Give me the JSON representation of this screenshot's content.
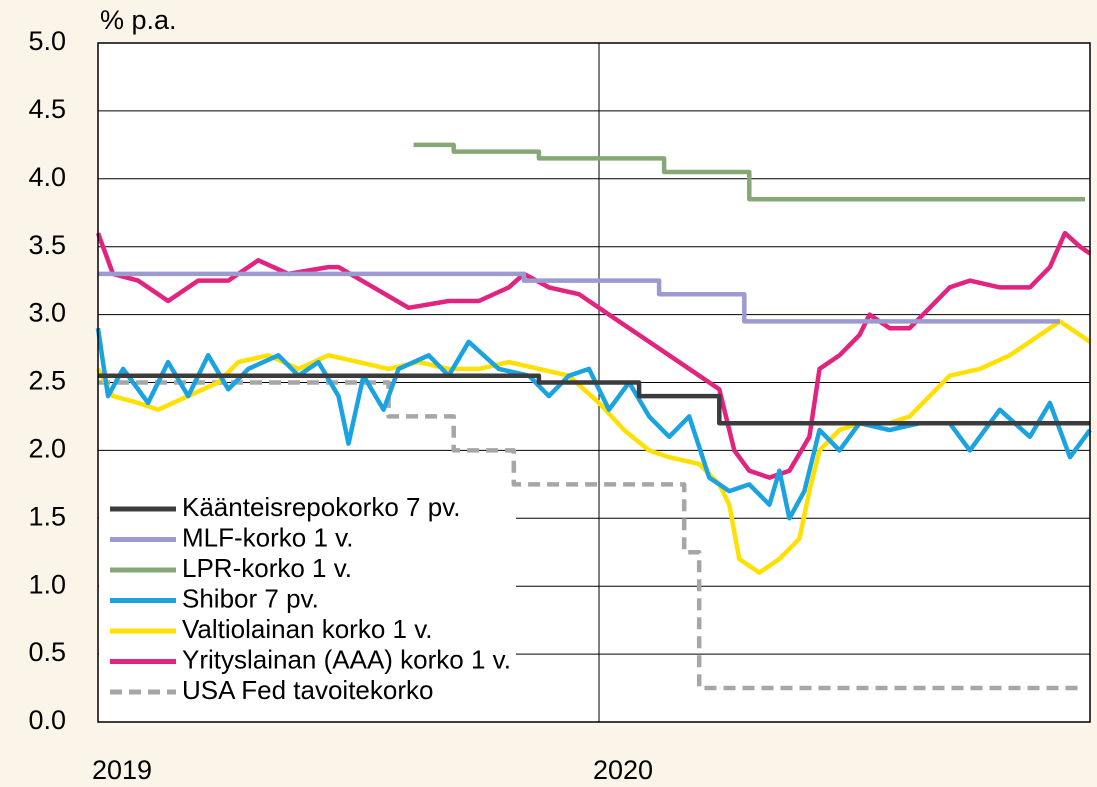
{
  "chart_data": {
    "type": "line",
    "ylabel": "% p.a.",
    "xlim": [
      2019,
      2020.98
    ],
    "xticks": [
      2019,
      2020
    ],
    "ylim": [
      0,
      5
    ],
    "yticks": [
      {
        "value": 0,
        "label": "0.0"
      },
      0.5,
      {
        "value": 1,
        "label": "1.0"
      },
      1.5,
      {
        "value": 2,
        "label": "2.0"
      },
      2.5,
      {
        "value": 3,
        "label": "3.0"
      },
      3.5,
      {
        "value": 4,
        "label": "4.0"
      },
      4.5,
      {
        "value": 5,
        "label": "5.0"
      }
    ],
    "grid": true,
    "legend": "lower left",
    "series": [
      {
        "name": "Käänteisrepokorko 7 pv.",
        "color": "#3c3c3c",
        "x": [
          2019,
          2019.88,
          2019.88,
          2020.08,
          2020.08,
          2020.24,
          2020.24,
          2020.98
        ],
        "values": [
          2.55,
          2.55,
          2.5,
          2.5,
          2.4,
          2.4,
          2.2,
          2.2
        ]
      },
      {
        "name": "MLF-korko 1 v.",
        "color": "#9b9bd2",
        "x": [
          2019,
          2019.85,
          2019.85,
          2020.12,
          2020.12,
          2020.29,
          2020.29,
          2020.92
        ],
        "values": [
          3.3,
          3.3,
          3.25,
          3.25,
          3.15,
          3.15,
          2.95,
          2.95
        ]
      },
      {
        "name": "LPR-korko 1 v.",
        "color": "#86a877",
        "x": [
          2019.63,
          2019.71,
          2019.71,
          2019.88,
          2019.88,
          2020.13,
          2020.13,
          2020.3,
          2020.3,
          2020.97
        ],
        "values": [
          4.25,
          4.25,
          4.2,
          4.2,
          4.15,
          4.15,
          4.05,
          4.05,
          3.85,
          3.85
        ]
      },
      {
        "name": "Shibor 7 pv.",
        "color": "#1aa3e0",
        "x": [
          2019,
          2019.02,
          2019.05,
          2019.1,
          2019.14,
          2019.18,
          2019.22,
          2019.26,
          2019.3,
          2019.36,
          2019.4,
          2019.44,
          2019.48,
          2019.5,
          2019.53,
          2019.57,
          2019.6,
          2019.66,
          2019.7,
          2019.74,
          2019.8,
          2019.86,
          2019.9,
          2019.94,
          2019.98,
          2020.02,
          2020.06,
          2020.1,
          2020.14,
          2020.18,
          2020.22,
          2020.26,
          2020.3,
          2020.34,
          2020.36,
          2020.38,
          2020.41,
          2020.44,
          2020.48,
          2020.52,
          2020.58,
          2020.64,
          2020.7,
          2020.74,
          2020.8,
          2020.86,
          2020.9,
          2020.94,
          2020.98
        ],
        "values": [
          2.9,
          2.4,
          2.6,
          2.35,
          2.65,
          2.4,
          2.7,
          2.45,
          2.6,
          2.7,
          2.55,
          2.65,
          2.4,
          2.05,
          2.55,
          2.3,
          2.6,
          2.7,
          2.55,
          2.8,
          2.6,
          2.55,
          2.4,
          2.55,
          2.6,
          2.3,
          2.5,
          2.25,
          2.1,
          2.25,
          1.8,
          1.7,
          1.75,
          1.6,
          1.85,
          1.5,
          1.7,
          2.15,
          2.0,
          2.2,
          2.15,
          2.2,
          2.2,
          2.0,
          2.3,
          2.1,
          2.35,
          1.95,
          2.15
        ]
      },
      {
        "name": "Valtiolainan korko 1 v.",
        "color": "#ffe000",
        "x": [
          2019,
          2019.03,
          2019.08,
          2019.12,
          2019.18,
          2019.24,
          2019.28,
          2019.34,
          2019.4,
          2019.46,
          2019.52,
          2019.58,
          2019.64,
          2019.7,
          2019.76,
          2019.82,
          2019.88,
          2019.94,
          2020,
          2020.05,
          2020.1,
          2020.14,
          2020.2,
          2020.24,
          2020.26,
          2020.28,
          2020.32,
          2020.36,
          2020.4,
          2020.42,
          2020.44,
          2020.48,
          2020.52,
          2020.58,
          2020.62,
          2020.66,
          2020.7,
          2020.76,
          2020.82,
          2020.88,
          2020.92,
          2020.96,
          2020.98
        ],
        "values": [
          2.6,
          2.4,
          2.35,
          2.3,
          2.4,
          2.5,
          2.65,
          2.7,
          2.6,
          2.7,
          2.65,
          2.6,
          2.65,
          2.6,
          2.6,
          2.65,
          2.6,
          2.55,
          2.35,
          2.15,
          2.0,
          1.95,
          1.9,
          1.75,
          1.6,
          1.2,
          1.1,
          1.2,
          1.35,
          1.7,
          2.0,
          2.15,
          2.2,
          2.2,
          2.25,
          2.4,
          2.55,
          2.6,
          2.7,
          2.85,
          2.95,
          2.85,
          2.8
        ]
      },
      {
        "name": "Yrityslainan (AAA) korko 1 v.",
        "color": "#e2237f",
        "x": [
          2019,
          2019.03,
          2019.08,
          2019.14,
          2019.2,
          2019.26,
          2019.32,
          2019.38,
          2019.46,
          2019.48,
          2019.55,
          2019.62,
          2019.7,
          2019.76,
          2019.82,
          2019.85,
          2019.9,
          2019.96,
          2020.02,
          2020.06,
          2020.12,
          2020.18,
          2020.24,
          2020.27,
          2020.3,
          2020.34,
          2020.38,
          2020.42,
          2020.44,
          2020.48,
          2020.52,
          2020.54,
          2020.58,
          2020.62,
          2020.66,
          2020.7,
          2020.74,
          2020.8,
          2020.86,
          2020.9,
          2020.93,
          2020.96,
          2020.98
        ],
        "values": [
          3.6,
          3.3,
          3.25,
          3.1,
          3.25,
          3.25,
          3.4,
          3.3,
          3.35,
          3.35,
          3.2,
          3.05,
          3.1,
          3.1,
          3.2,
          3.3,
          3.2,
          3.15,
          3.0,
          2.9,
          2.75,
          2.6,
          2.45,
          2.0,
          1.85,
          1.8,
          1.85,
          2.1,
          2.6,
          2.7,
          2.85,
          3.0,
          2.9,
          2.9,
          3.05,
          3.2,
          3.25,
          3.2,
          3.2,
          3.35,
          3.6,
          3.5,
          3.45
        ]
      },
      {
        "name": "USA Fed tavoitekorko",
        "color": "#a6a6a6",
        "dashed": true,
        "x": [
          2019,
          2019.58,
          2019.58,
          2019.71,
          2019.71,
          2019.83,
          2019.83,
          2020.17,
          2020.17,
          2020.2,
          2020.2,
          2020.96
        ],
        "values": [
          2.5,
          2.5,
          2.25,
          2.25,
          2.0,
          2.0,
          1.75,
          1.75,
          1.25,
          1.25,
          0.25,
          0.25
        ]
      }
    ]
  }
}
